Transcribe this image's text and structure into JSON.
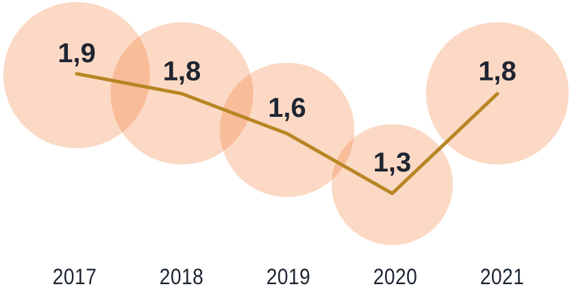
{
  "chart_data": {
    "type": "line",
    "subtype": "bubble-line",
    "title": "",
    "xlabel": "",
    "ylabel": "",
    "categories": [
      "2017",
      "2018",
      "2019",
      "2020",
      "2021"
    ],
    "values": [
      1.9,
      1.8,
      1.6,
      1.3,
      1.8
    ],
    "value_labels": [
      "1,9",
      "1,8",
      "1,6",
      "1,3",
      "1,8"
    ],
    "decimal_separator": ",",
    "value_max": 1.9,
    "grid": false,
    "axes_visible": false,
    "legend": "none",
    "markers": "none",
    "bubble_area_proportional_to_value": true,
    "colors": {
      "background": "#FFFFFF",
      "bubble_base": "#F06717",
      "bubble_opacity": 0.25,
      "bubble_single_appearance": "#FBD9C5",
      "bubble_overlap_appearance": "#F7B997",
      "line": "#B78624",
      "value_text": "#1F2531",
      "year_text": "#1C2530"
    }
  }
}
